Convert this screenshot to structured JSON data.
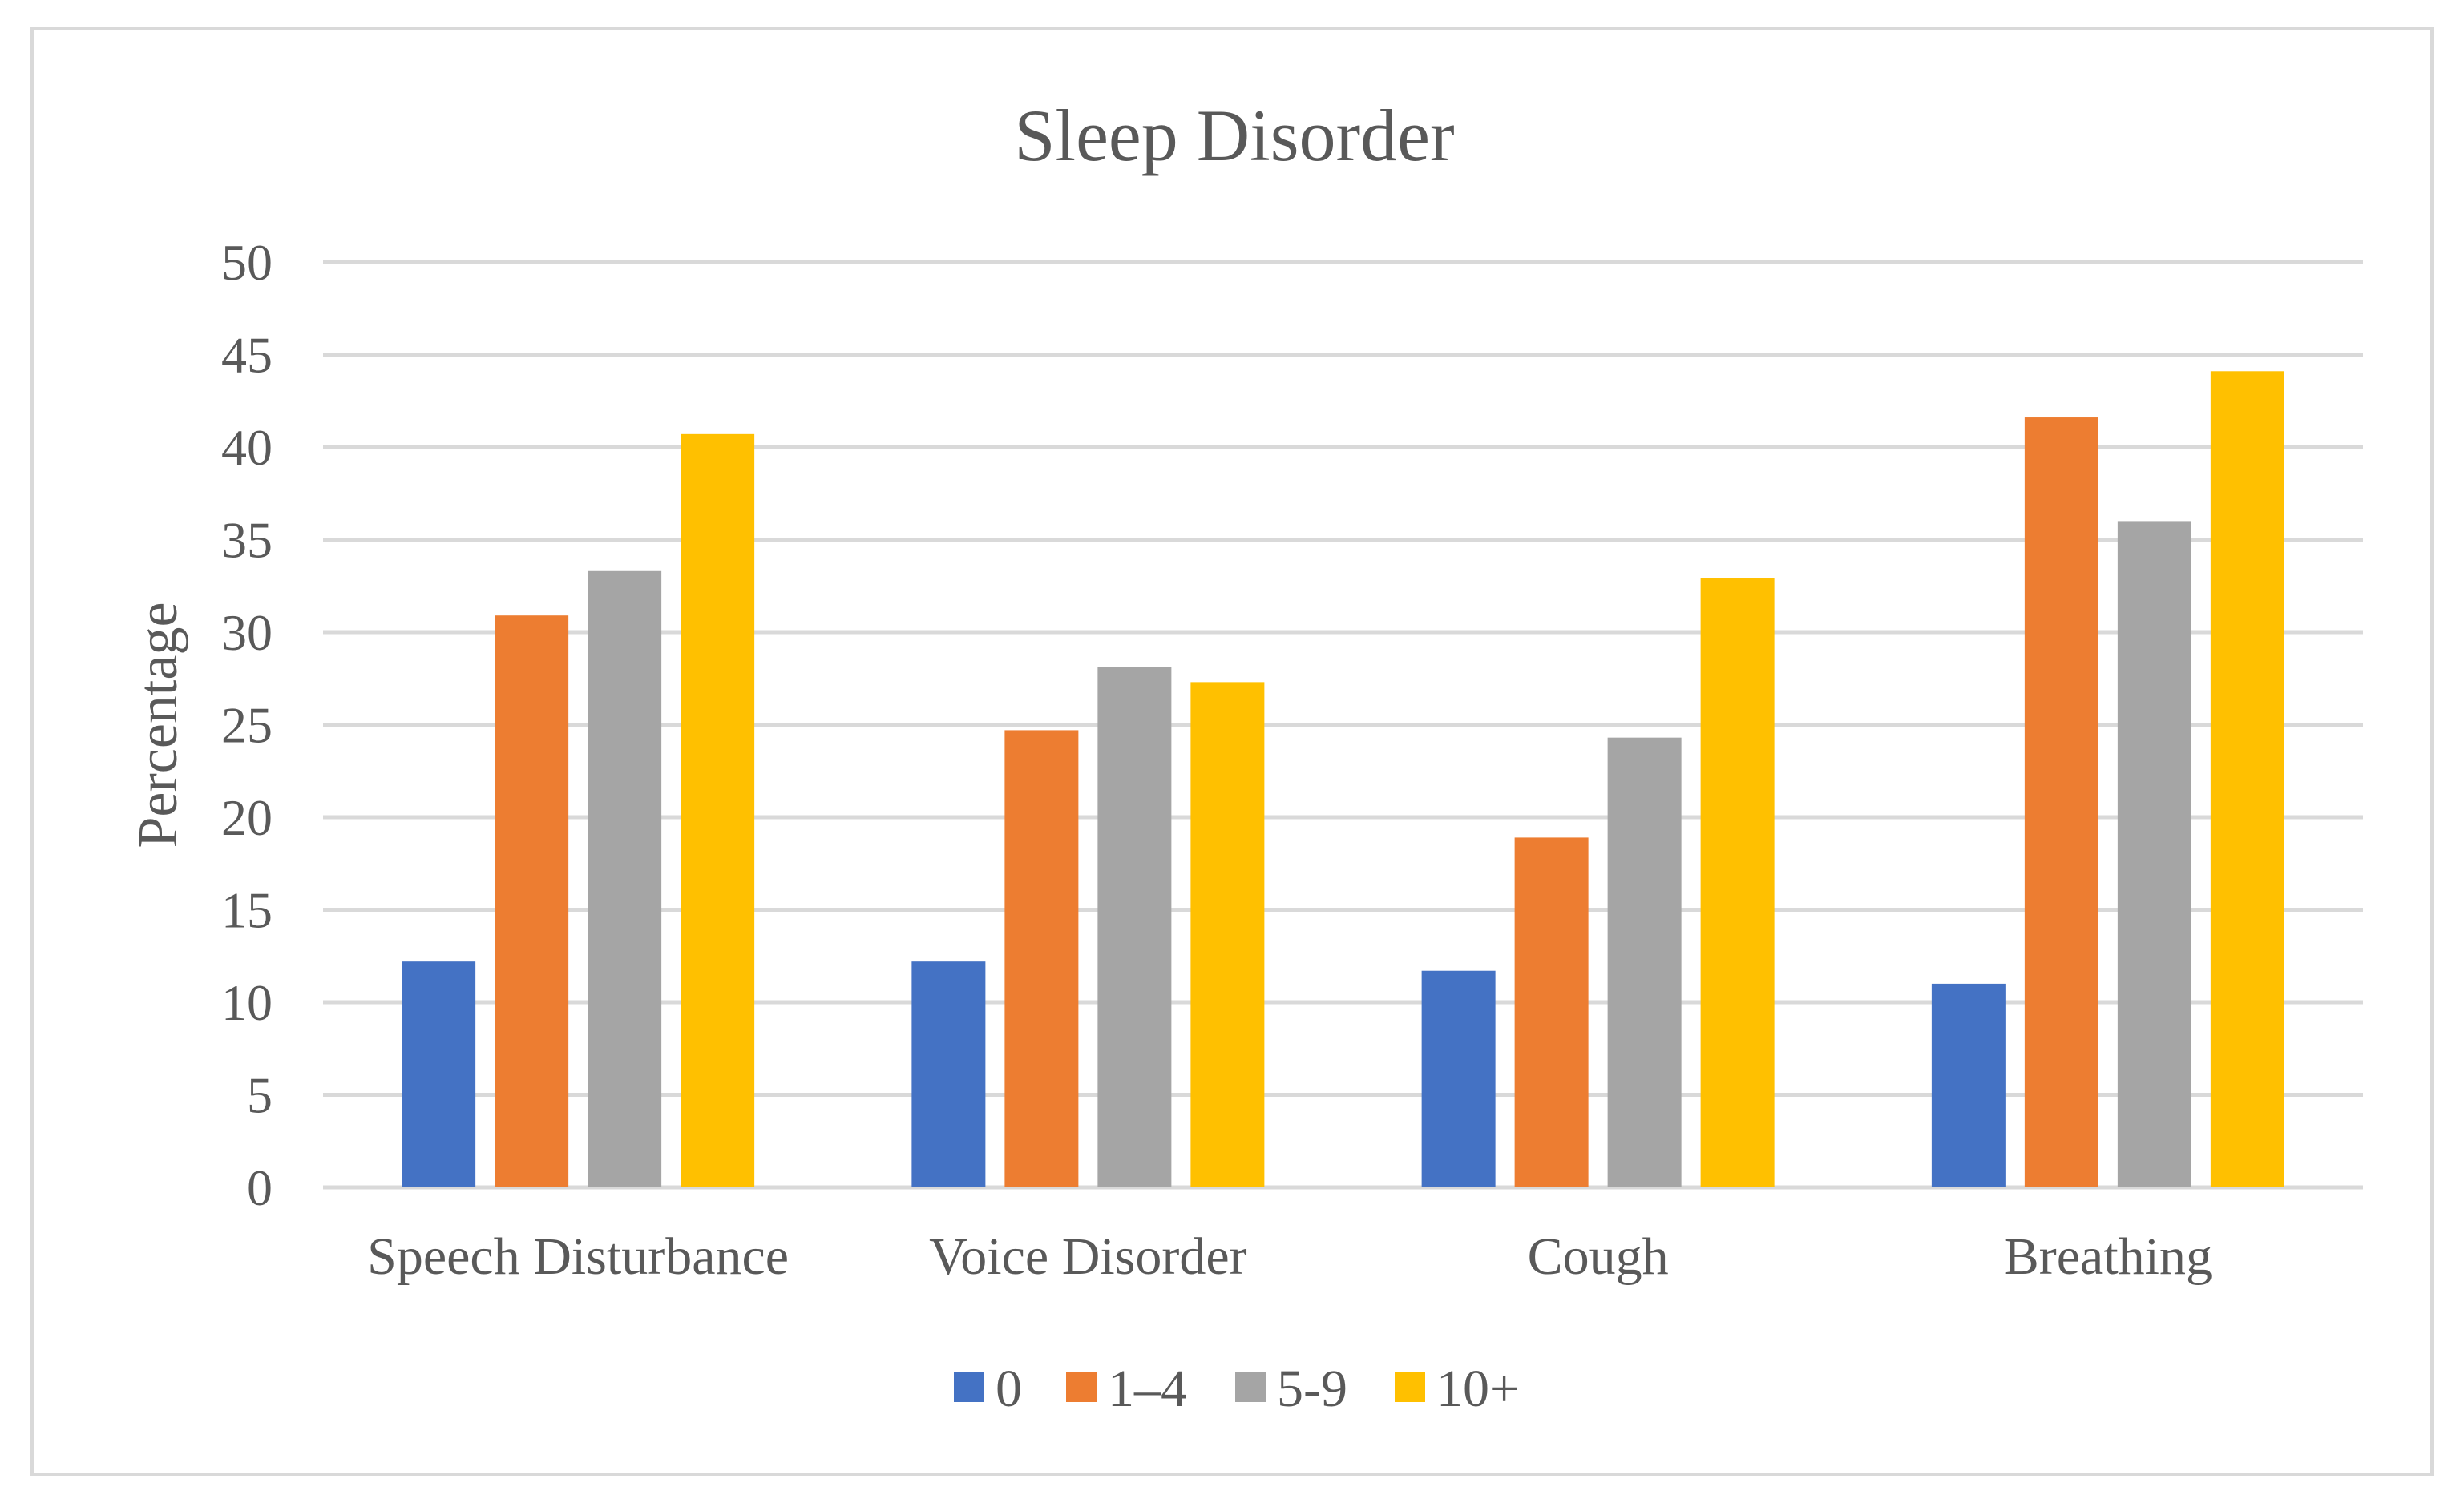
{
  "chart_data": {
    "type": "bar",
    "title": "Sleep Disorder",
    "xlabel": "",
    "ylabel": "Percentage",
    "ylim": [
      0,
      50
    ],
    "ytick_step": 5,
    "yticks": [
      "0",
      "5",
      "10",
      "15",
      "20",
      "25",
      "30",
      "35",
      "40",
      "45",
      "50"
    ],
    "grid": true,
    "legend_position": "bottom",
    "categories": [
      "Speech Disturbance",
      "Voice Disorder",
      "Cough",
      "Breathing"
    ],
    "series": [
      {
        "name": "0",
        "color": "#4472c4",
        "values": [
          12.2,
          12.2,
          11.7,
          11.0
        ]
      },
      {
        "name": "1–4",
        "color": "#ed7d31",
        "values": [
          30.9,
          24.7,
          18.9,
          41.6
        ]
      },
      {
        "name": "5-9",
        "color": "#a5a5a5",
        "values": [
          33.3,
          28.1,
          24.3,
          36.0
        ]
      },
      {
        "name": "10+",
        "color": "#ffc000",
        "values": [
          40.7,
          27.3,
          32.9,
          44.1
        ]
      }
    ]
  }
}
